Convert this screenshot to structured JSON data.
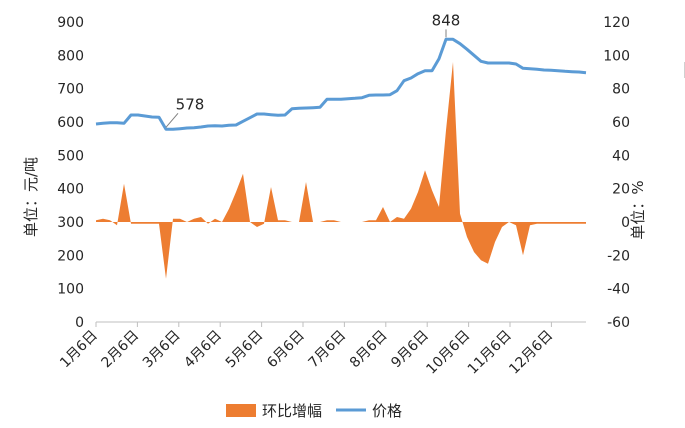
{
  "chart_data": {
    "type": "line",
    "title": "",
    "left_axis_label": "单位：元/吨",
    "right_axis_label": "单位：%",
    "left_axis": {
      "min": 0,
      "max": 900,
      "step": 100,
      "ticks": [
        "0",
        "100",
        "200",
        "300",
        "400",
        "500",
        "600",
        "700",
        "800",
        "900"
      ]
    },
    "right_axis": {
      "min": -60,
      "max": 120,
      "step": 20,
      "ticks": [
        "-60",
        "-40",
        "-20",
        "0",
        "20",
        "40",
        "60",
        "80",
        "100",
        "120"
      ]
    },
    "x_ticks": [
      "1月6日",
      "2月6日",
      "3月6日",
      "4月6日",
      "5月6日",
      "6月6日",
      "7月6日",
      "8月6日",
      "9月6日",
      "10月6日",
      "11月6日",
      "12月6日"
    ],
    "series": [
      {
        "name": "价格",
        "axis": "left",
        "color": "#5b9bd5",
        "x": [
          0,
          1,
          2,
          3,
          4,
          5,
          6,
          7,
          8,
          9,
          10,
          11,
          12,
          13,
          14,
          15,
          16,
          17,
          18,
          19,
          20,
          21,
          22,
          23,
          24,
          25,
          26,
          27,
          28,
          29,
          30,
          31,
          32,
          33,
          34,
          35,
          36,
          37,
          38,
          39,
          40,
          41,
          42,
          43,
          44,
          45,
          46,
          47,
          48,
          49,
          50,
          51,
          52,
          53,
          54,
          55,
          56,
          57,
          58,
          59,
          60,
          61,
          62,
          63,
          64,
          65,
          66,
          67,
          68,
          69,
          70
        ],
        "values": [
          594,
          596,
          598,
          598,
          596,
          621,
          621,
          618,
          615,
          614,
          578,
          578,
          580,
          582,
          583,
          585,
          588,
          589,
          588,
          590,
          591,
          602,
          613,
          624,
          624,
          622,
          620,
          621,
          640,
          641,
          642,
          643,
          644,
          668,
          668,
          668,
          670,
          671,
          673,
          680,
          681,
          681,
          682,
          694,
          724,
          732,
          745,
          754,
          754,
          790,
          848,
          848,
          835,
          818,
          800,
          782,
          777,
          777,
          777,
          777,
          774,
          761,
          760,
          758,
          756,
          755,
          754,
          752,
          751,
          750,
          748
        ],
        "annotations": [
          {
            "x": 10,
            "value": 578,
            "label": "578"
          },
          {
            "x": 50,
            "value": 848,
            "label": "848"
          }
        ]
      },
      {
        "name": "环比增幅",
        "axis": "right",
        "type": "area",
        "color": "#ed7d31",
        "x": [
          0,
          1,
          2,
          3,
          4,
          5,
          6,
          7,
          8,
          9,
          10,
          11,
          12,
          13,
          14,
          15,
          16,
          17,
          18,
          19,
          20,
          21,
          22,
          23,
          24,
          25,
          26,
          27,
          28,
          29,
          30,
          31,
          32,
          33,
          34,
          35,
          36,
          37,
          38,
          39,
          40,
          41,
          42,
          43,
          44,
          45,
          46,
          47,
          48,
          49,
          50,
          51,
          52,
          53,
          54,
          55,
          56,
          57,
          58,
          59,
          60,
          61,
          62,
          63,
          64,
          65,
          66,
          67,
          68,
          69,
          70
        ],
        "values": [
          1,
          2,
          1,
          -2,
          23,
          -1,
          -1,
          -1,
          -1,
          -1,
          -34,
          2,
          2,
          0,
          2,
          3,
          -1,
          2,
          0,
          8,
          18,
          29,
          0,
          -3,
          -1,
          21,
          1,
          1,
          0,
          0,
          24,
          0,
          0,
          1,
          1,
          0,
          0,
          0,
          0,
          1,
          1,
          9,
          0,
          3,
          2,
          8,
          18,
          31,
          19,
          9,
          55,
          96,
          5,
          -9,
          -18,
          -23,
          -25,
          -12,
          -3,
          0,
          -2,
          -20,
          -2,
          -1,
          -1,
          -1,
          -1,
          -1,
          -1,
          -1,
          -1
        ]
      }
    ],
    "legend_position": "bottom",
    "grid": false
  }
}
